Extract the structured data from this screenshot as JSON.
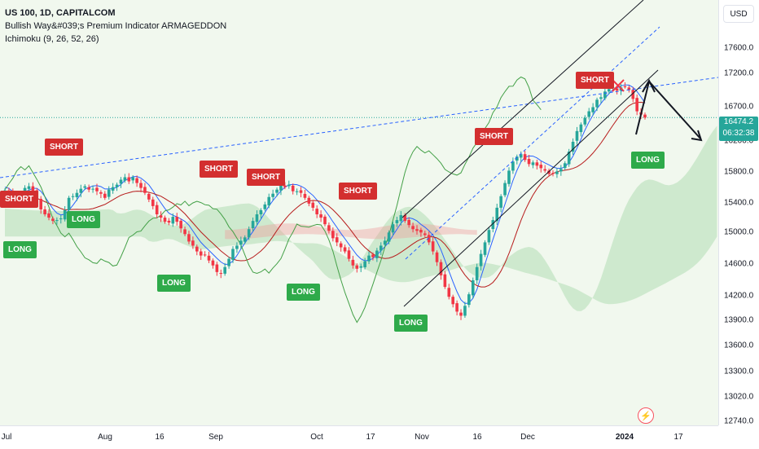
{
  "legend": {
    "symbol_line": "US 100, 1D, CAPITALCOM",
    "indicator_1": "Bullish Way&#039;s Premium Indicator ARMAGEDDON",
    "indicator_2": "Ichimoku (9, 26, 52, 26)"
  },
  "price_axis": {
    "currency_button": "USD",
    "ticks": [
      "17600.0",
      "17200.0",
      "16700.0",
      "16200.0",
      "15800.0",
      "15400.0",
      "15000.0",
      "14600.0",
      "14200.0",
      "13900.0",
      "13600.0",
      "13300.0",
      "13020.0",
      "12740.0"
    ],
    "current_price": "16474.2",
    "countdown": "06:32:38"
  },
  "time_axis": {
    "ticks": [
      "Jul",
      "Aug",
      "16",
      "Sep",
      "Oct",
      "17",
      "Nov",
      "16",
      "Dec",
      "2024",
      "17"
    ]
  },
  "signals": {
    "short_label": "SHORT",
    "long_label": "LONG"
  },
  "icons": {
    "flash": "flash-icon"
  },
  "colors": {
    "bull": "#26a69a",
    "bear": "#f23645",
    "tenkan": "#2962ff",
    "kijun": "#b71c1c",
    "chikou": "#43a047",
    "cloud_bull": "#a5d6a7",
    "cloud_bear": "#ef9a9a",
    "short_tag": "#d32f2f",
    "long_tag": "#2eaa4a"
  },
  "chart_data": {
    "type": "candlestick",
    "ylim": [
      12740,
      17900
    ],
    "closes": [
      15590,
      15560,
      15460,
      15500,
      15540,
      15620,
      15640,
      15580,
      15500,
      15360,
      15300,
      15260,
      15220,
      15230,
      15250,
      15350,
      15500,
      15520,
      15560,
      15610,
      15640,
      15600,
      15610,
      15580,
      15550,
      15500,
      15600,
      15630,
      15660,
      15720,
      15750,
      15700,
      15750,
      15680,
      15620,
      15560,
      15480,
      15400,
      15300,
      15260,
      15210,
      15200,
      15270,
      15210,
      15130,
      15060,
      14970,
      14920,
      14850,
      14800,
      14810,
      14740,
      14680,
      14600,
      14580,
      14660,
      14760,
      14880,
      14920,
      14980,
      15020,
      15120,
      15220,
      15300,
      15350,
      15420,
      15510,
      15550,
      15600,
      15650,
      15630,
      15660,
      15580,
      15580,
      15560,
      15500,
      15430,
      15380,
      15300,
      15260,
      15180,
      15100,
      15010,
      14960,
      14900,
      14850,
      14760,
      14680,
      14640,
      14670,
      14730,
      14800,
      14780,
      14860,
      14920,
      14980,
      15080,
      15180,
      15230,
      15290,
      15220,
      15170,
      15120,
      15100,
      15080,
      15050,
      14960,
      14850,
      14720,
      14560,
      14420,
      14300,
      14210,
      14120,
      14070,
      14190,
      14330,
      14500,
      14660,
      14820,
      14960,
      15110,
      15230,
      15380,
      15520,
      15680,
      15830,
      15940,
      16000,
      16030,
      15960,
      15910,
      15930,
      15890,
      15860,
      15830,
      15790,
      15800,
      15820,
      15850,
      15920,
      16060,
      16180,
      16310,
      16390,
      16470,
      16550,
      16600,
      16690,
      16720,
      16790,
      16820,
      16840,
      16800,
      16840,
      16850,
      16810,
      16700,
      16550,
      16510,
      16474
    ]
  }
}
